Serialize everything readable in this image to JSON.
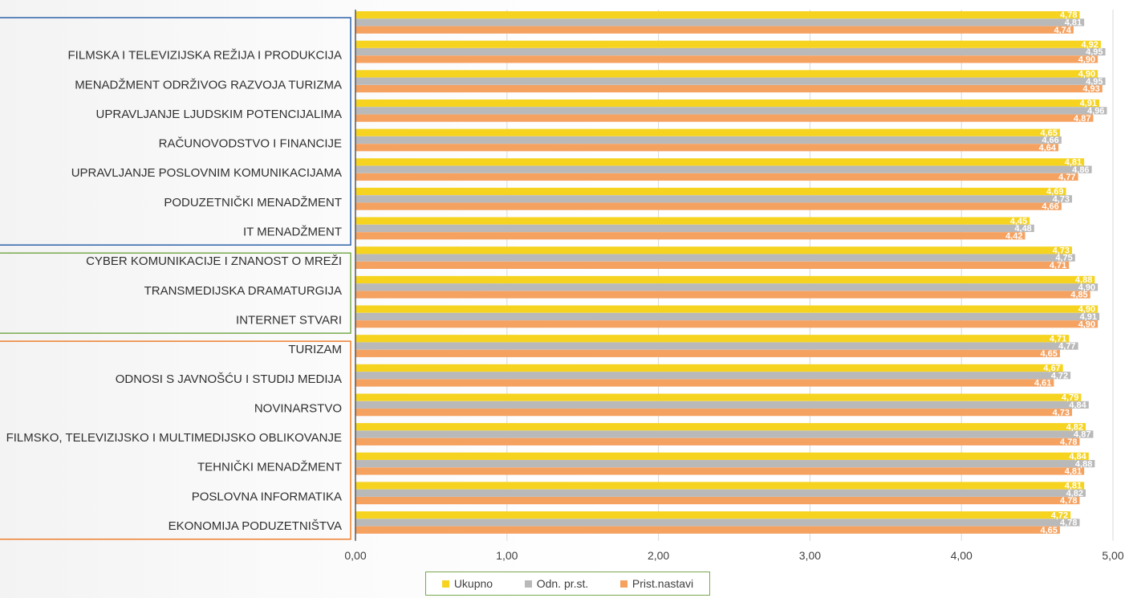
{
  "chart_data": {
    "type": "bar",
    "orientation": "horizontal",
    "categories": [
      "",
      "FILMSKA I TELEVIZIJSKA REŽIJA I PRODUKCIJA",
      "MENADŽMENT ODRŽIVOG RAZVOJA TURIZMA",
      "UPRAVLJANJE LJUDSKIM POTENCIJALIMA",
      "RAČUNOVODSTVO I FINANCIJE",
      "UPRAVLJANJE POSLOVNIM KOMUNIKACIJAMA",
      "PODUZETNIČKI MENADŽMENT",
      "IT MENADŽMENT",
      "CYBER KOMUNIKACIJE I ZNANOST O MREŽI",
      "TRANSMEDIJSKA DRAMATURGIJA",
      "INTERNET STVARI",
      "TURIZAM",
      "ODNOSI S JAVNOŠĆU I STUDIJ MEDIJA",
      "NOVINARSTVO",
      "FILMSKO, TELEVIZIJSKO I MULTIMEDIJSKO OBLIKOVANJE",
      "TEHNIČKI MENADŽMENT",
      "POSLOVNA INFORMATIKA",
      "EKONOMIJA PODUZETNIŠTVA"
    ],
    "series": [
      {
        "name": "Ukupno",
        "color": "#f5d31f",
        "values": [
          4.78,
          4.92,
          4.9,
          4.91,
          4.65,
          4.81,
          4.69,
          4.45,
          4.73,
          4.88,
          4.9,
          4.71,
          4.67,
          4.79,
          4.82,
          4.84,
          4.81,
          4.72
        ]
      },
      {
        "name": "Odn. pr.st.",
        "color": "#b9b9b9",
        "values": [
          4.81,
          4.95,
          4.95,
          4.96,
          4.66,
          4.86,
          4.73,
          4.48,
          4.75,
          4.9,
          4.91,
          4.77,
          4.72,
          4.84,
          4.87,
          4.88,
          4.82,
          4.78
        ]
      },
      {
        "name": "Prist.nastavi",
        "color": "#f5a160",
        "values": [
          4.74,
          4.9,
          4.93,
          4.87,
          4.64,
          4.77,
          4.66,
          4.42,
          4.71,
          4.85,
          4.9,
          4.65,
          4.61,
          4.73,
          4.78,
          4.81,
          4.78,
          4.65
        ]
      }
    ],
    "x_ticks": [
      "0,00",
      "1,00",
      "2,00",
      "3,00",
      "4,00",
      "5,00"
    ],
    "xlim": [
      0,
      5
    ],
    "grid": true,
    "legend_position": "bottom",
    "category_groups": [
      {
        "from": 0,
        "to": 7,
        "border_color": "#2f62a8"
      },
      {
        "from": 8,
        "to": 10,
        "border_color": "#79a94f"
      },
      {
        "from": 11,
        "to": 17,
        "border_color": "#ee7f2e"
      }
    ],
    "title": "",
    "xlabel": "",
    "ylabel": ""
  }
}
